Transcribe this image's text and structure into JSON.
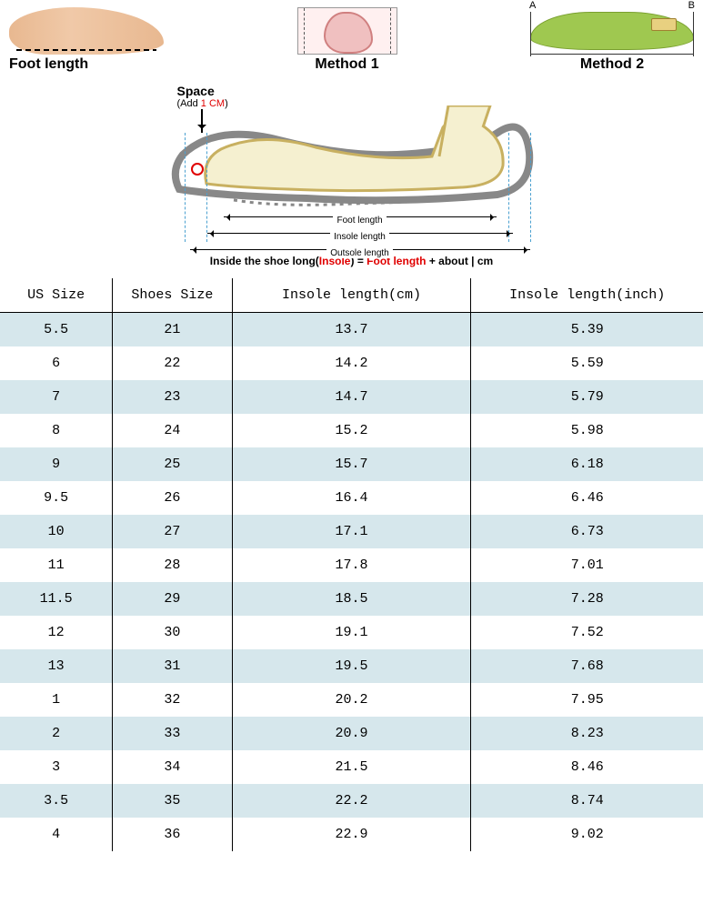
{
  "methods": {
    "foot_length_label": "Foot length",
    "method1_label": "Method 1",
    "method2_label": "Method 2",
    "a_label": "A",
    "b_label": "B"
  },
  "diagram": {
    "space_title": "Space",
    "space_sub_prefix": "(Add ",
    "space_sub_hl": "1 CM",
    "space_sub_suffix": ")",
    "foot_length_label": "Foot length",
    "insole_length_label": "Insole length",
    "outsole_length_label": "Outsole length"
  },
  "formula": {
    "prefix": "Inside the shoe long(",
    "insole_word": "Insole",
    "mid1": ") = ",
    "foot_length_word": "Foot length",
    "mid2": " + about ",
    "suffix": "| cm"
  },
  "table": {
    "columns": [
      "US Size",
      "Shoes Size",
      "Insole length(cm)",
      "Insole length(inch)"
    ],
    "col_keys": [
      "us",
      "shoe",
      "cm",
      "inch"
    ],
    "col_classes": [
      "col-us",
      "col-shoe",
      "col-cm",
      "col-in"
    ],
    "stripe_colors": {
      "a": "#d6e7ec",
      "b": "#ffffff"
    },
    "header_bg": "#ffffff",
    "border_color": "#000000",
    "font_family": "Courier New",
    "cell_fontsize": 15,
    "rows": [
      {
        "us": "5.5",
        "shoe": "21",
        "cm": "13.7",
        "inch": "5.39"
      },
      {
        "us": "6",
        "shoe": "22",
        "cm": "14.2",
        "inch": "5.59"
      },
      {
        "us": "7",
        "shoe": "23",
        "cm": "14.7",
        "inch": "5.79"
      },
      {
        "us": "8",
        "shoe": "24",
        "cm": "15.2",
        "inch": "5.98"
      },
      {
        "us": "9",
        "shoe": "25",
        "cm": "15.7",
        "inch": "6.18"
      },
      {
        "us": "9.5",
        "shoe": "26",
        "cm": "16.4",
        "inch": "6.46"
      },
      {
        "us": "10",
        "shoe": "27",
        "cm": "17.1",
        "inch": "6.73"
      },
      {
        "us": "11",
        "shoe": "28",
        "cm": "17.8",
        "inch": "7.01"
      },
      {
        "us": "11.5",
        "shoe": "29",
        "cm": "18.5",
        "inch": "7.28"
      },
      {
        "us": "12",
        "shoe": "30",
        "cm": "19.1",
        "inch": "7.52"
      },
      {
        "us": "13",
        "shoe": "31",
        "cm": "19.5",
        "inch": "7.68"
      },
      {
        "us": "1",
        "shoe": "32",
        "cm": "20.2",
        "inch": "7.95"
      },
      {
        "us": "2",
        "shoe": "33",
        "cm": "20.9",
        "inch": "8.23"
      },
      {
        "us": "3",
        "shoe": "34",
        "cm": "21.5",
        "inch": "8.46"
      },
      {
        "us": "3.5",
        "shoe": "35",
        "cm": "22.2",
        "inch": "8.74"
      },
      {
        "us": "4",
        "shoe": "36",
        "cm": "22.9",
        "inch": "9.02"
      }
    ]
  },
  "colors": {
    "highlight_red": "#e00000",
    "shoe_outline": "#888888",
    "shoe_sole": "#888888",
    "foot_fill": "#f5f0d0",
    "foot_stroke": "#c8b060",
    "dash_blue": "#4aa0d0",
    "insole_green": "#9fc850",
    "footprint_pink": "#f0c0c0",
    "skin": "#e8b890"
  }
}
